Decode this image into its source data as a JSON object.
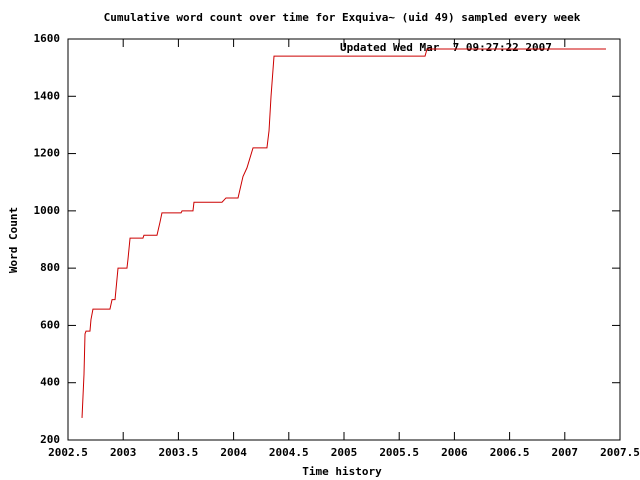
{
  "chart_data": {
    "type": "line",
    "title": "Cumulative word count over time for Exquiva~ (uid 49) sampled every week",
    "x_label": "Time history",
    "y_label": "Word Count",
    "annotation": "Updated Wed Mar  7 09:27:22 2007",
    "xlim": [
      2002.5,
      2007.5
    ],
    "xticks": [
      2002.5,
      2003,
      2003.5,
      2004,
      2004.5,
      2005,
      2005.5,
      2006,
      2006.5,
      2007,
      2007.5
    ],
    "ylim": [
      200,
      1600
    ],
    "yticks": [
      200,
      400,
      600,
      800,
      1000,
      1200,
      1400,
      1600
    ],
    "grid": false,
    "series": [
      {
        "color": "#cc0000",
        "x": [
          2002.627,
          2002.645,
          2002.654,
          2002.663,
          2002.699,
          2002.708,
          2002.726,
          2002.88,
          2002.899,
          2002.926,
          2002.953,
          2003.034,
          2003.043,
          2003.062,
          2003.179,
          2003.188,
          2003.306,
          2003.333,
          2003.351,
          2003.524,
          2003.533,
          2003.632,
          2003.641,
          2003.895,
          2003.931,
          2004.04,
          2004.058,
          2004.085,
          2004.121,
          2004.176,
          2004.302,
          2004.321,
          2004.339,
          2004.366,
          2005.734,
          2005.752,
          2007.373
        ],
        "values": [
          277,
          430,
          570,
          580,
          580,
          620,
          657,
          657,
          690,
          690,
          800,
          800,
          830,
          905,
          905,
          915,
          915,
          960,
          993,
          993,
          1000,
          1000,
          1030,
          1030,
          1045,
          1045,
          1075,
          1120,
          1150,
          1220,
          1220,
          1280,
          1400,
          1540,
          1540,
          1565,
          1565
        ]
      }
    ]
  }
}
